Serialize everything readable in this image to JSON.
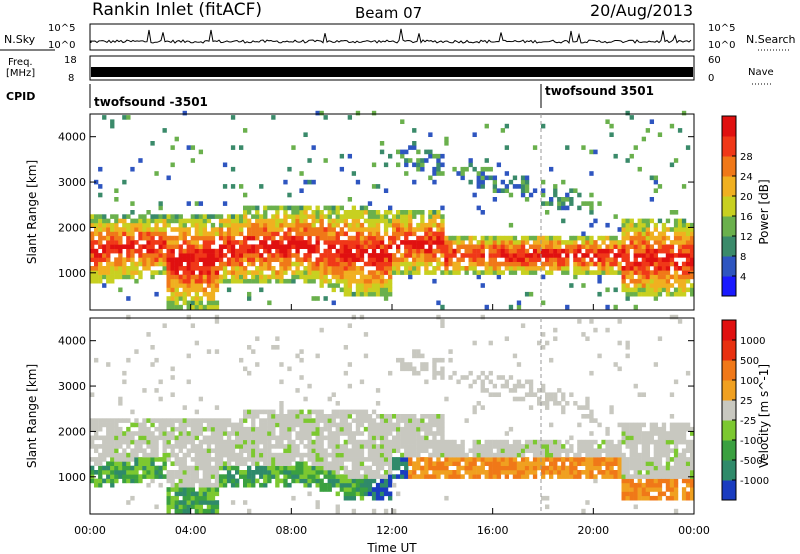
{
  "header": {
    "station": "Rankin Inlet (fitACF)",
    "beam": "Beam 07",
    "date": "20/Aug/2013"
  },
  "strips": {
    "nsky": {
      "label": "N.Sky",
      "top_tick": "10^5",
      "bottom_tick": "10^0",
      "right_top_tick": "10^5",
      "right_bottom_tick": "10^0",
      "right_label": "N.Search"
    },
    "freq": {
      "label_line1": "Freq.",
      "label_line2": "[MHz]",
      "left_ticks": [
        "18",
        "8"
      ],
      "right_ticks": [
        "60",
        "0"
      ],
      "right_label": "Nave"
    },
    "cpid": {
      "label": "CPID",
      "programs": [
        {
          "name": "twofsound -3501",
          "start_hour": 0
        },
        {
          "name": "twofsound 3501",
          "start_hour": 18
        }
      ]
    }
  },
  "chart_data": [
    {
      "type": "heatmap",
      "ylabel": "Slant Range [km]",
      "ylim": [
        180,
        4500
      ],
      "yticks": [
        1000,
        2000,
        3000,
        4000
      ],
      "colorbar": {
        "label": "Power [dB]",
        "ticks": [
          "4",
          "8",
          "12",
          "16",
          "20",
          "24",
          "28"
        ],
        "colors": [
          "#1a1aff",
          "#2e55c0",
          "#3a8a6a",
          "#6ab04c",
          "#c8d020",
          "#f0b020",
          "#f07818",
          "#f03818",
          "#e01010"
        ]
      }
    },
    {
      "type": "heatmap",
      "ylabel": "Slant Range [km]",
      "xlabel": "Time UT",
      "ylim": [
        180,
        4500
      ],
      "yticks": [
        1000,
        2000,
        3000,
        4000
      ],
      "xticks": [
        "00:00",
        "04:00",
        "08:00",
        "12:00",
        "16:00",
        "20:00",
        "00:00"
      ],
      "colorbar": {
        "label": "Velocity [m s^-1]",
        "ticks": [
          "1000",
          "500",
          "100",
          "25",
          "-25",
          "-100",
          "-500",
          "-1000"
        ],
        "colors": [
          "#1a3cc0",
          "#2f8a6a",
          "#3aa040",
          "#7cc830",
          "#c8c8c0",
          "#f0a020",
          "#f07818",
          "#e83010",
          "#e01010"
        ]
      }
    }
  ]
}
